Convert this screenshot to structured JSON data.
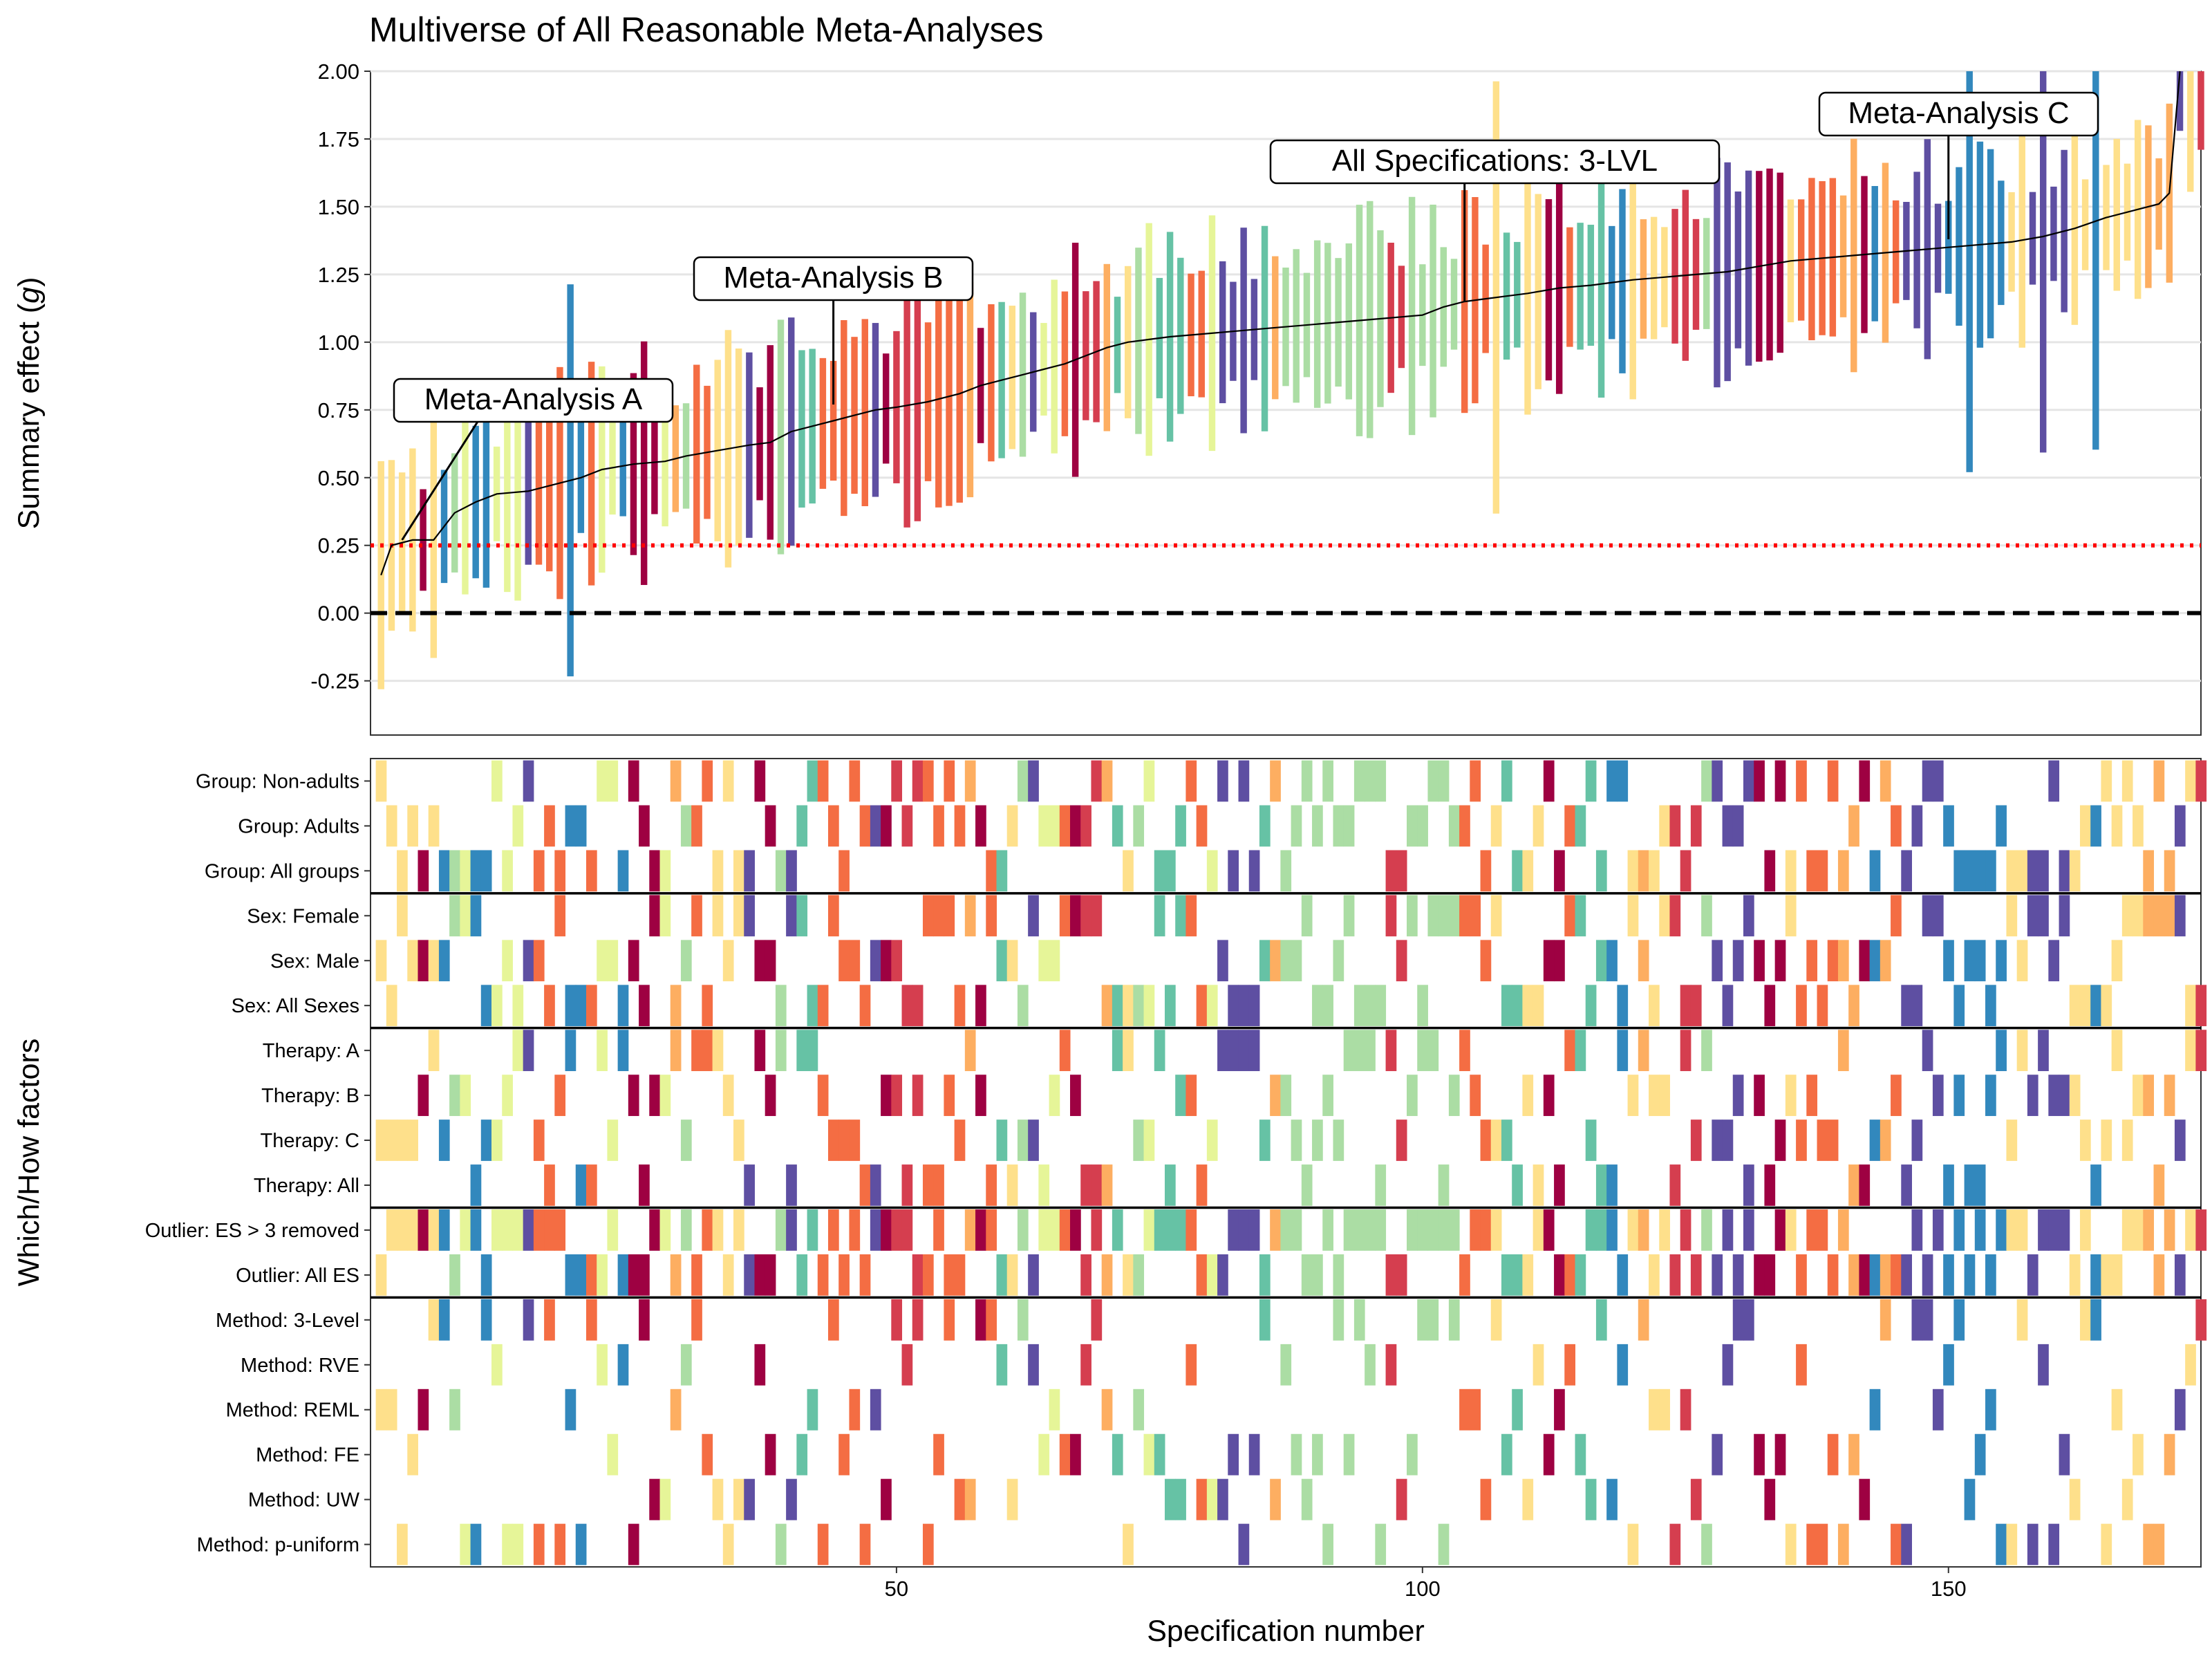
{
  "chart_data": [
    {
      "type": "errorbar",
      "title": "Multiverse of All Reasonable Meta-Analyses",
      "ylabel": "Summary effect (g)",
      "ylabel_main": "Summary effect (",
      "ylabel_var": "g",
      "ylabel_close": ")",
      "ylim": [
        -0.45,
        2.0
      ],
      "yticks": [
        2.0,
        1.75,
        1.5,
        1.25,
        1.0,
        0.75,
        0.5,
        0.25,
        0.0,
        -0.25
      ],
      "ytick_labels": [
        "2.00",
        "1.75",
        "1.50",
        "1.25",
        "1.00",
        "0.75",
        "0.50",
        "0.25",
        "0.00",
        "-0.25"
      ],
      "xlim": [
        0,
        174
      ],
      "grid": "horizontal",
      "reference_lines": [
        {
          "y": 0.0,
          "style": "dashed",
          "color": "#000000"
        },
        {
          "y": 0.25,
          "style": "dotted",
          "color": "#ff0000"
        }
      ],
      "n_specifications": 174,
      "summary_curve": [
        [
          1,
          0.14
        ],
        [
          2,
          0.25
        ],
        [
          4,
          0.27
        ],
        [
          6,
          0.27
        ],
        [
          8,
          0.37
        ],
        [
          10,
          0.41
        ],
        [
          12,
          0.44
        ],
        [
          15,
          0.45
        ],
        [
          18,
          0.48
        ],
        [
          20,
          0.5
        ],
        [
          22,
          0.53
        ],
        [
          25,
          0.55
        ],
        [
          28,
          0.56
        ],
        [
          30,
          0.58
        ],
        [
          33,
          0.6
        ],
        [
          36,
          0.62
        ],
        [
          38,
          0.63
        ],
        [
          40,
          0.67
        ],
        [
          42,
          0.69
        ],
        [
          44,
          0.71
        ],
        [
          46,
          0.73
        ],
        [
          48,
          0.75
        ],
        [
          50,
          0.76
        ],
        [
          53,
          0.78
        ],
        [
          56,
          0.81
        ],
        [
          58,
          0.84
        ],
        [
          60,
          0.86
        ],
        [
          62,
          0.88
        ],
        [
          64,
          0.9
        ],
        [
          66,
          0.92
        ],
        [
          68,
          0.95
        ],
        [
          70,
          0.98
        ],
        [
          72,
          1.0
        ],
        [
          74,
          1.01
        ],
        [
          76,
          1.02
        ],
        [
          79,
          1.03
        ],
        [
          82,
          1.04
        ],
        [
          85,
          1.05
        ],
        [
          88,
          1.06
        ],
        [
          91,
          1.07
        ],
        [
          94,
          1.08
        ],
        [
          97,
          1.09
        ],
        [
          100,
          1.1
        ],
        [
          102,
          1.13
        ],
        [
          104,
          1.15
        ],
        [
          106,
          1.16
        ],
        [
          108,
          1.17
        ],
        [
          110,
          1.18
        ],
        [
          113,
          1.2
        ],
        [
          116,
          1.21
        ],
        [
          118,
          1.22
        ],
        [
          120,
          1.23
        ],
        [
          123,
          1.24
        ],
        [
          126,
          1.25
        ],
        [
          129,
          1.26
        ],
        [
          132,
          1.28
        ],
        [
          135,
          1.3
        ],
        [
          138,
          1.31
        ],
        [
          141,
          1.32
        ],
        [
          144,
          1.33
        ],
        [
          147,
          1.34
        ],
        [
          150,
          1.35
        ],
        [
          153,
          1.36
        ],
        [
          156,
          1.37
        ],
        [
          159,
          1.39
        ],
        [
          162,
          1.42
        ],
        [
          165,
          1.46
        ],
        [
          168,
          1.49
        ],
        [
          170,
          1.51
        ],
        [
          171,
          1.55
        ],
        [
          172,
          2.0
        ]
      ],
      "colors": [
        "#5E4FA2",
        "#3288BD",
        "#66C2A5",
        "#ABDDA4",
        "#E6F598",
        "#FEE08B",
        "#FDAE61",
        "#F46D43",
        "#D53E4F",
        "#9E0142"
      ],
      "annotations": [
        {
          "label": "Meta-Analysis A",
          "x": 3,
          "y": 0.27
        },
        {
          "label": "Meta-Analysis B",
          "x": 44,
          "y": 0.77
        },
        {
          "label": "All Specifications: 3-LVL",
          "x": 104,
          "y": 1.15
        },
        {
          "label": "Meta-Analysis C",
          "x": 150,
          "y": 1.38
        }
      ]
    },
    {
      "type": "heatmap",
      "xlabel": "Specification number",
      "ylabel": "Which/How factors",
      "xticks": [
        50,
        100,
        150
      ],
      "rows": [
        "Group: Non-adults",
        "Group: Adults",
        "Group: All groups",
        "Sex: Female",
        "Sex: Male",
        "Sex: All Sexes",
        "Therapy: A",
        "Therapy: B",
        "Therapy: C",
        "Therapy: All",
        "Outlier: ES > 3 removed",
        "Outlier: All ES",
        "Method: 3-Level",
        "Method: RVE",
        "Method: REML",
        "Method: FE",
        "Method: UW",
        "Method: p-uniform"
      ],
      "factor_group_sizes": [
        3,
        3,
        4,
        2,
        6
      ],
      "method_order": [
        "Method: 3-Level",
        "Method: RVE",
        "Method: REML",
        "Method: FE",
        "Method: UW",
        "Method: p-uniform"
      ]
    }
  ]
}
